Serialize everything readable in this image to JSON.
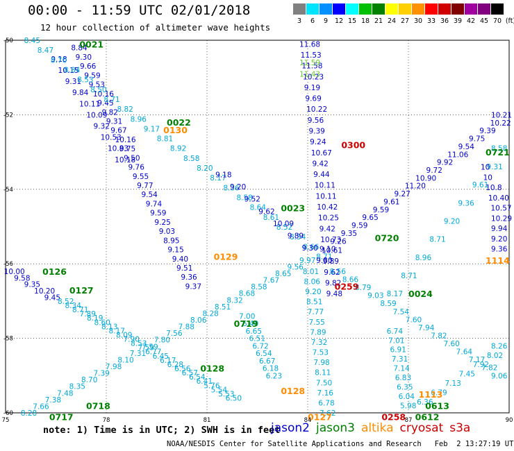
{
  "header": {
    "title": "00:00 - 11:59 UTC 02/01/2018",
    "subtitle": "12 hour collection of altimeter wave heights"
  },
  "scale": {
    "labels": [
      "3",
      "6",
      "9",
      "12",
      "15",
      "18",
      "21",
      "24",
      "27",
      "30",
      "33",
      "36",
      "39",
      "42",
      "45",
      "70",
      "(ft)"
    ],
    "colors": [
      "#808080",
      "#00e5ff",
      "#0090ff",
      "#0000ff",
      "#00ffff",
      "#00c000",
      "#008000",
      "#ffff00",
      "#ffd000",
      "#ff9000",
      "#ff0000",
      "#d00000",
      "#800000",
      "#a000a0",
      "#800080",
      "#000000"
    ]
  },
  "satellite_colors": {
    "jason2": "#0000cc",
    "jason3": "#008000",
    "altika": "#ff8c00",
    "cryosat": "#cc0000",
    "s3a": "#cc0000",
    "cyan": "#00a8d8",
    "lgreen": "#66cc33"
  },
  "chart_data": {
    "type": "map",
    "lon_ticks": [
      "75",
      "78",
      "81",
      "84",
      "87",
      "90"
    ],
    "lat_ticks": [
      "-50",
      "-52",
      "-54",
      "-56",
      "-58",
      "-60"
    ],
    "lon_range": [
      75,
      90
    ],
    "lat_range": [
      -60,
      -50
    ],
    "pass_labels": [
      {
        "t": "0021",
        "lon": 77.2,
        "lat": -50.1,
        "sat": "jason3"
      },
      {
        "t": "0022",
        "lon": 79.8,
        "lat": -52.2,
        "sat": "jason3"
      },
      {
        "t": "0130",
        "lon": 79.7,
        "lat": -52.4,
        "sat": "altika"
      },
      {
        "t": "0300",
        "lon": 85.0,
        "lat": -52.8,
        "sat": "cryosat"
      },
      {
        "t": "0023",
        "lon": 83.2,
        "lat": -54.5,
        "sat": "jason3"
      },
      {
        "t": "0720",
        "lon": 86.0,
        "lat": -55.3,
        "sat": "jason3"
      },
      {
        "t": "0129",
        "lon": 81.2,
        "lat": -55.8,
        "sat": "altika"
      },
      {
        "t": "1114",
        "lon": 89.3,
        "lat": -55.9,
        "sat": "altika"
      },
      {
        "t": "0126",
        "lon": 76.1,
        "lat": -56.2,
        "sat": "jason3"
      },
      {
        "t": "0127",
        "lon": 76.9,
        "lat": -56.7,
        "sat": "jason3"
      },
      {
        "t": "0259",
        "lon": 84.8,
        "lat": -56.6,
        "sat": "cryosat"
      },
      {
        "t": "0024",
        "lon": 87.0,
        "lat": -56.8,
        "sat": "jason3"
      },
      {
        "t": "0719",
        "lon": 81.8,
        "lat": -57.6,
        "sat": "jason3"
      },
      {
        "t": "0721",
        "lon": 89.3,
        "lat": -53.0,
        "sat": "jason3"
      },
      {
        "t": "0128",
        "lon": 80.8,
        "lat": -58.8,
        "sat": "jason3"
      },
      {
        "t": "0128",
        "lon": 83.2,
        "lat": -59.4,
        "sat": "altika"
      },
      {
        "t": "0718",
        "lon": 77.4,
        "lat": -59.8,
        "sat": "jason3"
      },
      {
        "t": "1113",
        "lon": 87.3,
        "lat": -59.5,
        "sat": "altika"
      },
      {
        "t": "0613",
        "lon": 87.5,
        "lat": -59.8,
        "sat": "jason3"
      },
      {
        "t": "0717",
        "lon": 76.3,
        "lat": -60.1,
        "sat": "jason3"
      },
      {
        "t": "0127",
        "lon": 84.0,
        "lat": -60.1,
        "sat": "altika"
      },
      {
        "t": "0258",
        "lon": 86.2,
        "lat": -60.1,
        "sat": "cryosat"
      },
      {
        "t": "0612",
        "lon": 87.2,
        "lat": -60.1,
        "sat": "jason3"
      }
    ],
    "tracks": [
      {
        "sat": "jason2",
        "lon0": 77.2,
        "lat0": -50.2,
        "lon1": 80.6,
        "lat1": -56.6,
        "values": [
          "8.84",
          "9.30",
          "9.66",
          "9.59",
          "9.53",
          "10.16",
          "9.45",
          "9.82",
          "9.31",
          "9.67",
          "10.16",
          "9.75",
          "9.50",
          "9.76",
          "9.55",
          "9.77",
          "9.54",
          "9.74",
          "9.59",
          "9.25",
          "9.03",
          "8.95",
          "9.15",
          "9.40",
          "9.51",
          "9.36",
          "9.37"
        ]
      },
      {
        "sat": "jason2",
        "lon0": 76.6,
        "lat0": -50.5,
        "lon1": 78.5,
        "lat1": -53.2,
        "values": [
          "9.18",
          "10.15",
          "9.31",
          "9.84",
          "10.11",
          "10.09",
          "9.32",
          "10.53",
          "10.83",
          "10.18"
        ]
      },
      {
        "sat": "cyan",
        "lon0": 75.8,
        "lat0": -50.0,
        "lon1": 84.5,
        "lat1": -55.8,
        "values": [
          "8.45",
          "8.47",
          "8.70",
          "8.84",
          "8.53",
          "8.50",
          "8.71",
          "8.82",
          "8.96",
          "9.17",
          "8.81",
          "8.92",
          "8.58",
          "8.20",
          "8.17",
          "8.36",
          "8.58",
          "8.64",
          "8.61",
          "8.52",
          "8.54",
          "8.66",
          "8.71"
        ]
      },
      {
        "sat": "jason2",
        "lon0": 81.5,
        "lat0": -53.6,
        "lon1": 84.5,
        "lat1": -55.9,
        "values": [
          "9.18",
          "9.20",
          "9.52",
          "9.62",
          "10.09",
          "9.89",
          "9.30",
          "9.80"
        ]
      },
      {
        "sat": "jason2",
        "lon0": 84.0,
        "lat0": -50.1,
        "lon1": 84.8,
        "lat1": -56.8,
        "values": [
          "11.68",
          "11.53",
          "11.58",
          "10.23",
          "9.19",
          "9.69",
          "10.22",
          "9.56",
          "9.39",
          "9.24",
          "10.67",
          "9.42",
          "9.44",
          "10.11",
          "10.11",
          "10.42",
          "10.25",
          "9.42",
          "10.73",
          "10.61",
          "9.89",
          "9.62",
          "9.82",
          "9.48"
        ]
      },
      {
        "sat": "lgreen",
        "lon0": 84.0,
        "lat0": -50.6,
        "lon1": 84.0,
        "lat1": -50.9,
        "values": [
          "11.59",
          "11.43"
        ]
      },
      {
        "sat": "jason2",
        "lon0": 84.6,
        "lat0": -55.6,
        "lon1": 90.0,
        "lat1": -52.0,
        "values": [
          "9.10",
          "9.26",
          "9.35",
          "9.59",
          "9.65",
          "9.59",
          "9.61",
          "9.27",
          "11.20",
          "10.90",
          "9.72",
          "9.92",
          "11.06",
          "9.54",
          "9.75",
          "9.39",
          "10.22",
          "10.21"
        ]
      },
      {
        "sat": "cyan",
        "lon0": 86.6,
        "lat0": -56.8,
        "lon1": 90.0,
        "lat1": -52.9,
        "values": [
          "8.17",
          "8.71",
          "8.96",
          "8.71",
          "9.20",
          "9.36",
          "9.61",
          "9.31",
          "8.58"
        ]
      },
      {
        "sat": "jason2",
        "lon0": 89.4,
        "lat0": -53.4,
        "lon1": 90.0,
        "lat1": -55.6,
        "values": [
          "10",
          "10",
          "10.8",
          "10.40",
          "10.57",
          "10.29",
          "9.94",
          "9.20",
          "9.36"
        ]
      },
      {
        "sat": "jason2",
        "lon0": 75.2,
        "lat0": -56.2,
        "lon1": 76.4,
        "lat1": -56.9,
        "values": [
          "10.00",
          "9.58",
          "9.35",
          "10.20",
          "9.45"
        ]
      },
      {
        "sat": "cyan",
        "lon0": 76.8,
        "lat0": -57.0,
        "lon1": 81.8,
        "lat1": -59.6,
        "values": [
          "8.52",
          "8.34",
          "8.71",
          "7.89",
          "8.19",
          "8.60",
          "8.13",
          "8.17",
          "8.09",
          "7.90",
          "8.53",
          "7.59",
          "6.77",
          "6.45",
          "6.17",
          "6.28",
          "6.56",
          "6.57",
          "6.54",
          "6.41",
          "5.76",
          "5.54",
          "5.53",
          "6.50"
        ]
      },
      {
        "sat": "cyan",
        "lon0": 75.7,
        "lat0": -60.0,
        "lon1": 84.0,
        "lat1": -55.9,
        "values": [
          "8.28",
          "7.66",
          "7.38",
          "7.48",
          "8.35",
          "8.70",
          "7.39",
          "7.98",
          "8.10",
          "7.31",
          "7.59",
          "7.80",
          "7.56",
          "7.88",
          "8.06",
          "8.28",
          "8.51",
          "8.32",
          "8.68",
          "8.58",
          "7.67",
          "8.65",
          "9.56",
          "9.97"
        ]
      },
      {
        "sat": "cyan",
        "lon0": 82.2,
        "lat0": -57.4,
        "lon1": 83.0,
        "lat1": -59.0,
        "values": [
          "7.00",
          "6.40",
          "6.65",
          "6.51",
          "6.72",
          "6.54",
          "6.67",
          "6.18",
          "6.23"
        ]
      },
      {
        "sat": "cyan",
        "lon0": 84.1,
        "lat0": -56.2,
        "lon1": 84.6,
        "lat1": -60.0,
        "values": [
          "8.01",
          "8.06",
          "9.20",
          "8.51",
          "7.77",
          "7.55",
          "7.89",
          "7.32",
          "7.53",
          "7.98",
          "8.11",
          "7.50",
          "7.16",
          "6.78",
          "7.62"
        ]
      },
      {
        "sat": "cyan",
        "lon0": 84.9,
        "lat0": -56.2,
        "lon1": 89.8,
        "lat1": -59.0,
        "values": [
          "8.56",
          "8.66",
          "8.79",
          "9.03",
          "8.59",
          "7.54",
          "7.60",
          "7.94",
          "7.82",
          "7.60",
          "7.64",
          "7.17",
          "7.82",
          "9.06"
        ]
      },
      {
        "sat": "cyan",
        "lon0": 86.6,
        "lat0": -57.8,
        "lon1": 87.0,
        "lat1": -59.8,
        "values": [
          "6.74",
          "7.01",
          "6.91",
          "7.31",
          "7.14",
          "6.83",
          "6.35",
          "6.04",
          "5.98"
        ]
      },
      {
        "sat": "cyan",
        "lon0": 87.5,
        "lat0": -59.7,
        "lon1": 90.0,
        "lat1": -58.2,
        "values": [
          "6.36",
          "6.79",
          "7.13",
          "7.45",
          "7.92",
          "8.02",
          "8.26"
        ]
      }
    ]
  },
  "footer": {
    "note": "note: 1) Time is in UTC; 2) SWH is in feet",
    "credit": "NOAA/NESDIS Center for Satellite Applications and Research   Feb  2 13:27:19 UTC 2018",
    "legend": [
      {
        "label": "jason2",
        "sat": "jason2"
      },
      {
        "label": "jason3",
        "sat": "jason3"
      },
      {
        "label": "altika",
        "sat": "altika"
      },
      {
        "label": "cryosat",
        "sat": "cryosat"
      },
      {
        "label": "s3a",
        "sat": "s3a"
      }
    ]
  }
}
